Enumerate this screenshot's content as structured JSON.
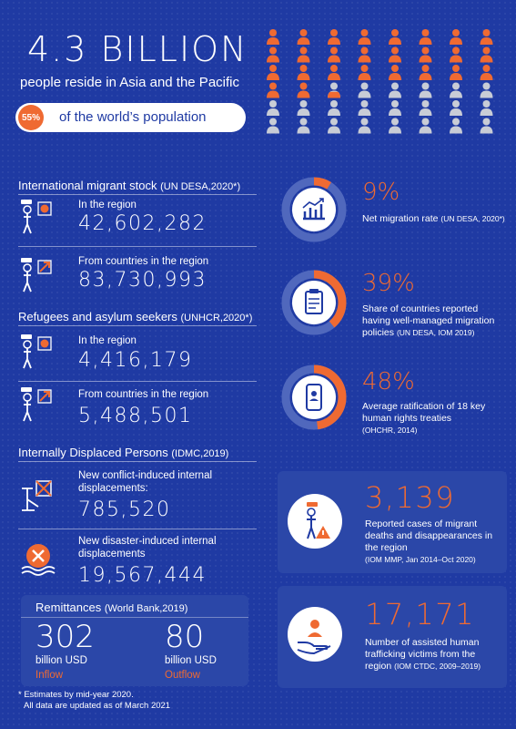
{
  "hero": {
    "big_number": "4.3 BILLION",
    "subtitle": "people reside in Asia and the Pacific",
    "share_pct": "55%",
    "share_text": "of the world’s population"
  },
  "colors": {
    "background": "#1f3aa3",
    "accent": "#ef6a32",
    "card": "#2b47a8",
    "people_grey": "#c8ccd6"
  },
  "people_grid": {
    "total": 48,
    "highlighted": 26.4
  },
  "migrant_stock": {
    "title": "International migrant stock",
    "source": "(UN DESA,2020*)",
    "in_label": "In the region",
    "in_value": "42,602,282",
    "from_label": "From countries in the region",
    "from_value": "83,730,993"
  },
  "refugees": {
    "title": "Refugees and asylum seekers",
    "source": "(UNHCR,2020*)",
    "in_label": "In the region",
    "in_value": "4,416,179",
    "from_label": "From countries in the region",
    "from_value": "5,488,501"
  },
  "idp": {
    "title": "Internally Displaced Persons",
    "source": "(IDMC,2019)",
    "conflict_label_1": "New conflict-induced internal",
    "conflict_label_2": "displacements:",
    "conflict_value": "785,520",
    "disaster_label_1": "New disaster-induced internal",
    "disaster_label_2": "displacements",
    "disaster_value": "19,567,444"
  },
  "remittances": {
    "title": "Remittances",
    "source": "(World Bank,2019)",
    "inflow_value": "302",
    "inflow_unit": "billion USD",
    "inflow_label": "Inflow",
    "outflow_value": "80",
    "outflow_unit": "billion USD",
    "outflow_label": "Outflow"
  },
  "footnote": {
    "line1": "* Estimates by mid-year 2020.",
    "line2": "All data are updated as of March 2021"
  },
  "stats": [
    {
      "pct": "9%",
      "fill": 0.09,
      "line1": "Net migration rate",
      "source": "(UN DESA, 2020*)"
    },
    {
      "pct": "39%",
      "fill": 0.39,
      "line1": "Share of countries reported",
      "line2": "having well-managed migration",
      "line3": "policies",
      "source": "(UN DESA, IOM 2019)"
    },
    {
      "pct": "48%",
      "fill": 0.48,
      "line1": "Average ratification of 18 key",
      "line2": "human rights treaties",
      "source": "(OHCHR, 2014)"
    }
  ],
  "cards": [
    {
      "value": "3,139",
      "line1": "Reported cases of migrant",
      "line2": "deaths and disappearances in",
      "line3": "the region",
      "source": "(IOM MMP, Jan 2014–Oct 2020)"
    },
    {
      "value": "17,171",
      "line1": "Number of assisted human",
      "line2": "trafficking victims from the",
      "line3": "region",
      "source": "(IOM CTDC, 2009–2019)"
    }
  ]
}
